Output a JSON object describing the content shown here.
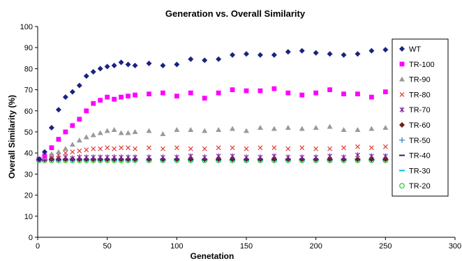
{
  "chart_data": {
    "type": "scatter",
    "title": "Generation vs. Overall Similarity",
    "xlabel": "Genetation",
    "ylabel": "Overall Similarity (%)",
    "xlim": [
      0,
      300
    ],
    "ylim": [
      0,
      100
    ],
    "x_ticks": [
      0,
      50,
      100,
      150,
      200,
      250,
      300
    ],
    "y_ticks": [
      0,
      10,
      20,
      30,
      40,
      50,
      60,
      70,
      80,
      90,
      100
    ],
    "grid": false,
    "legend_position": "right",
    "x": [
      1,
      5,
      10,
      15,
      20,
      25,
      30,
      35,
      40,
      45,
      50,
      55,
      60,
      65,
      70,
      80,
      90,
      100,
      110,
      120,
      130,
      140,
      150,
      160,
      170,
      180,
      190,
      200,
      210,
      220,
      230,
      240,
      250
    ],
    "series": [
      {
        "name": "WT",
        "color": "#1a237e",
        "marker": "diamond",
        "values": [
          37,
          40.5,
          52,
          60.5,
          66.5,
          69,
          72,
          76.5,
          78.5,
          80,
          81,
          81.5,
          83,
          82,
          81.5,
          82.5,
          81.5,
          82,
          84.5,
          84,
          84.5,
          86.5,
          87,
          86.5,
          86.5,
          88,
          88.5,
          87.5,
          87,
          86.5,
          87,
          88.5,
          89
        ]
      },
      {
        "name": "TR-100",
        "color": "#ff00ff",
        "marker": "square",
        "values": [
          37,
          38.5,
          42.5,
          46.5,
          50,
          53,
          56,
          60,
          63.5,
          65,
          66.5,
          65.5,
          66.5,
          67,
          67.5,
          68,
          68.5,
          67,
          68.5,
          66,
          68.5,
          70,
          69.5,
          69.5,
          70.5,
          68.5,
          67.5,
          68.5,
          70,
          68,
          68,
          66.5,
          69
        ]
      },
      {
        "name": "TR-90",
        "color": "#999999",
        "marker": "triangle",
        "values": [
          37,
          38,
          39.5,
          40.5,
          42,
          44,
          46,
          47.5,
          48.5,
          49.5,
          50.5,
          51,
          49.5,
          49.5,
          50,
          50.5,
          49,
          51,
          51,
          50.5,
          51,
          51.5,
          50.5,
          52,
          51.5,
          52,
          51.5,
          52,
          52.5,
          51,
          51,
          51.5,
          52
        ]
      },
      {
        "name": "TR-80",
        "color": "#e53935",
        "marker": "x",
        "values": [
          37,
          37.5,
          38.5,
          39,
          40,
          40.5,
          41,
          41.5,
          42,
          42,
          42.5,
          42,
          42.5,
          42.5,
          42,
          42.5,
          42,
          42.5,
          42,
          42,
          42.5,
          42.5,
          42,
          42.5,
          42.5,
          42,
          42.5,
          42,
          42,
          42.5,
          43,
          42.5,
          43
        ]
      },
      {
        "name": "TR-70",
        "color": "#7b1fa2",
        "marker": "star",
        "values": [
          37,
          37,
          37.5,
          37.5,
          38,
          37.5,
          38,
          38,
          38,
          38,
          38,
          38,
          38,
          38,
          38,
          38,
          38,
          38,
          38.5,
          38,
          38.5,
          38.5,
          38,
          38,
          38.5,
          38,
          38,
          38,
          38.5,
          38,
          39,
          38.5,
          38.5
        ]
      },
      {
        "name": "TR-60",
        "color": "#6d1f14",
        "marker": "diamond",
        "values": [
          37,
          37,
          37,
          37,
          37,
          37,
          37,
          37,
          37,
          37,
          37,
          37,
          37,
          37,
          37,
          37,
          37,
          37,
          37,
          37,
          37,
          37,
          37,
          37,
          37,
          37,
          37,
          37,
          37,
          37,
          37,
          37,
          37
        ]
      },
      {
        "name": "TR-50",
        "color": "#2979b8",
        "marker": "plus",
        "values": [
          37,
          37,
          37,
          37,
          37,
          37,
          37,
          37,
          37,
          37,
          37,
          37,
          37,
          37,
          37,
          37,
          37,
          37,
          37,
          37,
          37,
          37,
          37,
          37,
          37,
          37,
          37,
          37,
          37,
          37,
          37,
          37,
          37
        ]
      },
      {
        "name": "TR-40",
        "color": "#1a237e",
        "marker": "dash",
        "values": [
          37,
          37,
          37,
          37,
          37,
          37,
          37,
          37,
          37,
          37,
          37,
          37,
          37,
          37,
          37,
          37,
          37,
          37,
          37,
          37,
          37,
          37,
          37,
          37,
          37,
          37,
          37,
          37,
          37,
          37,
          37,
          37,
          37
        ]
      },
      {
        "name": "TR-30",
        "color": "#00bcd4",
        "marker": "dash",
        "values": [
          36.5,
          36.5,
          36.5,
          36.5,
          36.5,
          36.5,
          36.5,
          36.5,
          36.5,
          36.5,
          36.5,
          36.5,
          36.5,
          36.5,
          36.5,
          36.5,
          36.5,
          36.5,
          36.5,
          36.5,
          36.5,
          36.5,
          36.5,
          36.5,
          36.5,
          36.5,
          36.5,
          36.5,
          36.5,
          36.5,
          36.5,
          36.5,
          36.5
        ]
      },
      {
        "name": "TR-20",
        "color": "#33cc33",
        "marker": "circle",
        "values": [
          36.5,
          36.5,
          36.5,
          36.5,
          36.5,
          36.5,
          36.5,
          36.5,
          36.5,
          36.5,
          36.5,
          36.5,
          36.5,
          36.5,
          36.5,
          36.5,
          36.5,
          36.5,
          36.5,
          36.5,
          36.5,
          36.5,
          36.5,
          36.5,
          36.5,
          36.5,
          36.5,
          36.5,
          36.5,
          36.5,
          36.5,
          36.5,
          36.5
        ]
      }
    ]
  }
}
